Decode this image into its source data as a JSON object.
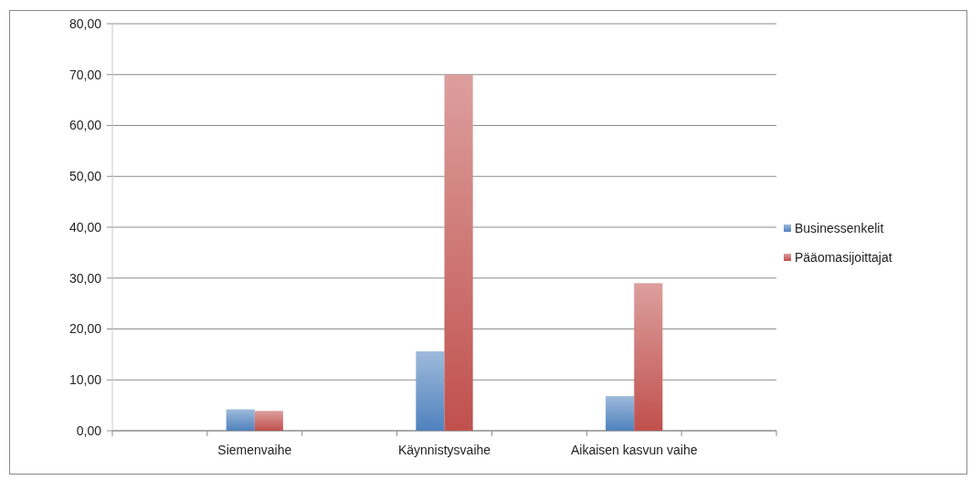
{
  "chart_data": {
    "type": "bar",
    "categories": [
      null,
      "Siemenvaihe",
      null,
      "Käynnistysvaihe",
      null,
      "Aikaisen kasvun vaihe",
      null
    ],
    "series": [
      {
        "name": "Businessenkelit",
        "color": "#4f81bd",
        "values": [
          null,
          4.2,
          null,
          15.6,
          null,
          6.8,
          null
        ]
      },
      {
        "name": "Pääomasijoittajat",
        "color": "#c0504d",
        "values": [
          null,
          3.9,
          null,
          70.0,
          null,
          29.0,
          null
        ]
      }
    ],
    "ylim": [
      0,
      80
    ],
    "yticks": [
      {
        "value": 0,
        "label": "0,00"
      },
      {
        "value": 10,
        "label": "10,00"
      },
      {
        "value": 20,
        "label": "20,00"
      },
      {
        "value": 30,
        "label": "30,00"
      },
      {
        "value": 40,
        "label": "40,00"
      },
      {
        "value": 50,
        "label": "50,00"
      },
      {
        "value": 60,
        "label": "60,00"
      },
      {
        "value": 70,
        "label": "70,00"
      },
      {
        "value": 80,
        "label": "80,00"
      }
    ],
    "grid": "y",
    "legend": "right"
  }
}
